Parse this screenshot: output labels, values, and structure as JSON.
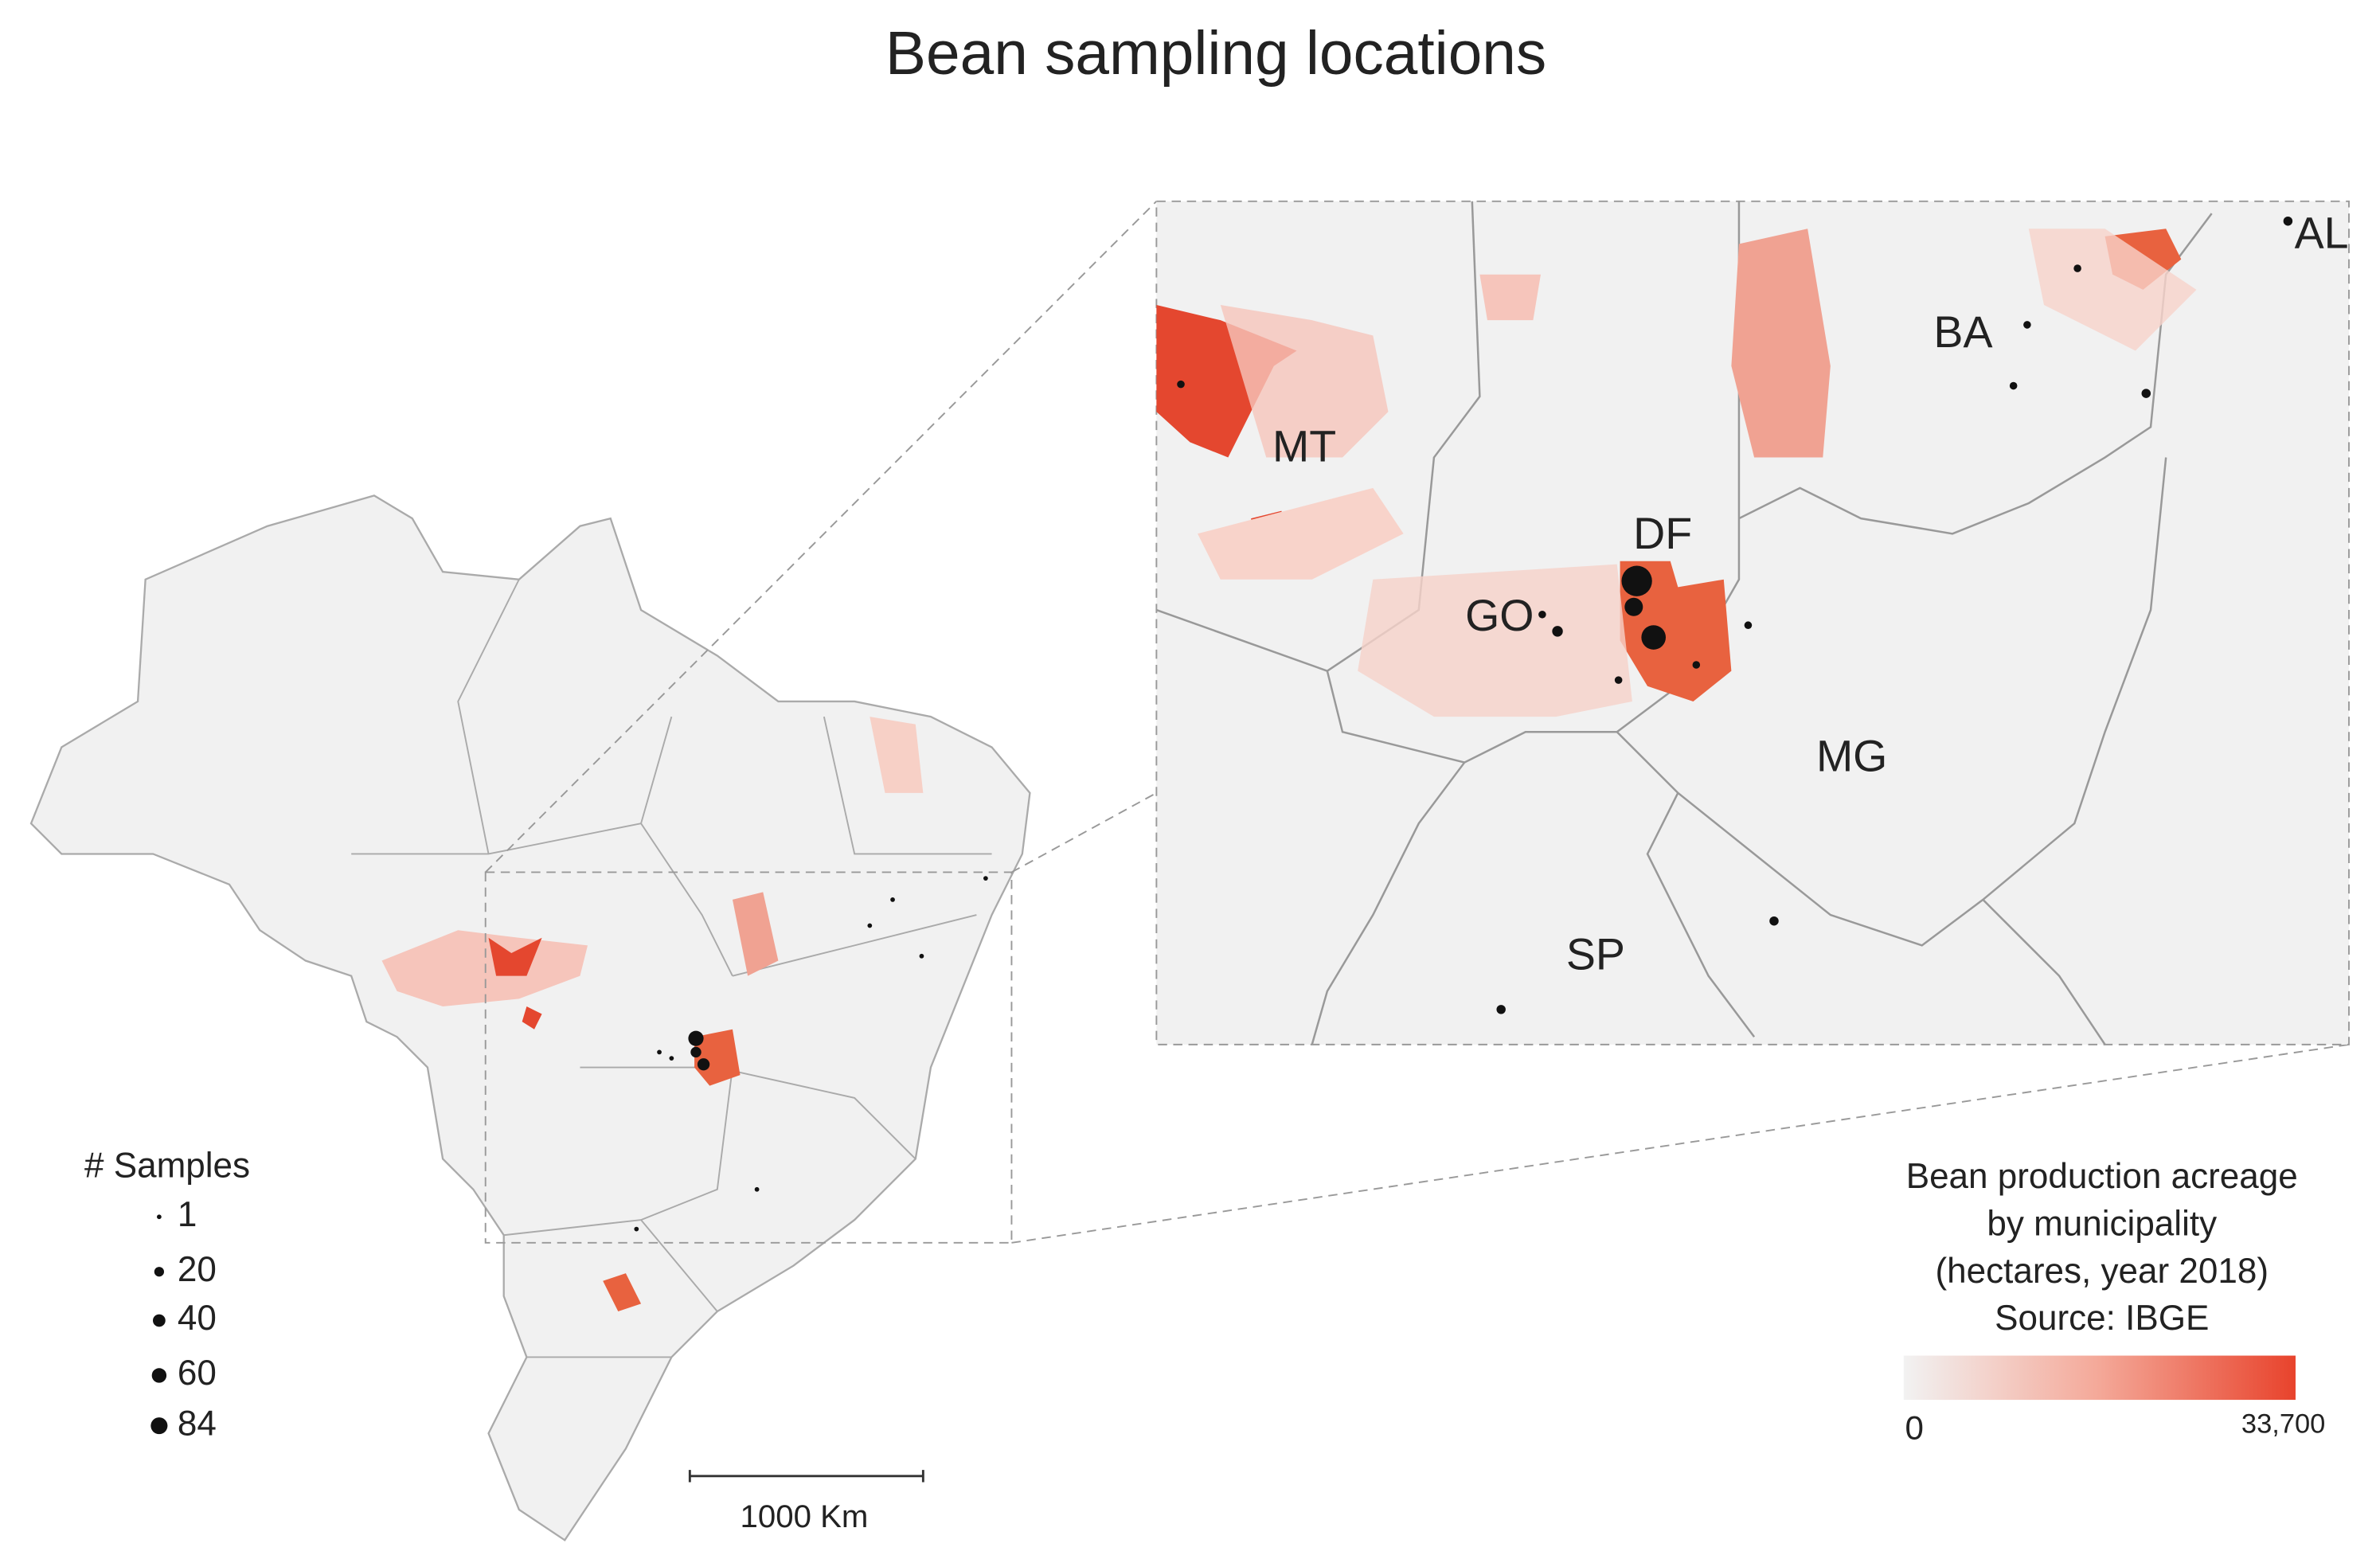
{
  "title": "Bean sampling locations",
  "legend": {
    "title": "# Samples",
    "values": [
      1,
      20,
      40,
      60,
      84
    ]
  },
  "colorbar": {
    "title": [
      "Bean production acreage",
      "by municipality",
      "(hectares, year 2018)",
      "Source: IBGE"
    ],
    "min_label": "0",
    "max_label": "33,700"
  },
  "state_labels": [
    "MT",
    "DF",
    "GO",
    "MG",
    "SP",
    "BA",
    "AL"
  ],
  "scale_bar": "1000 Km"
}
